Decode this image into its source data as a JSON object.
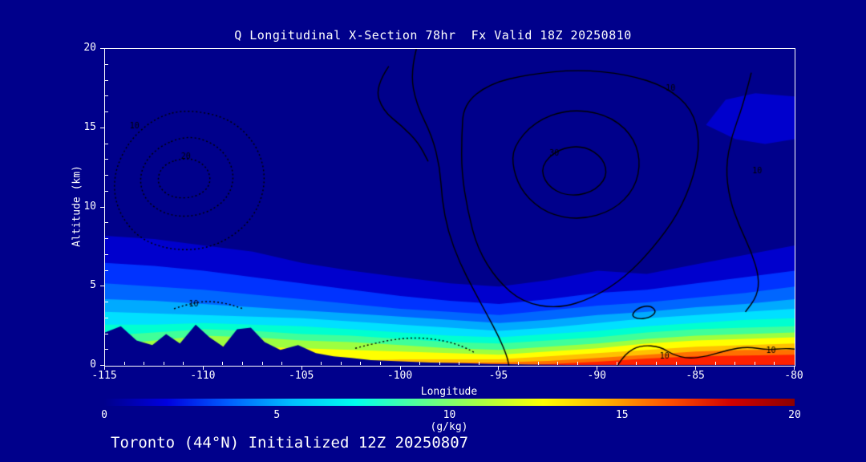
{
  "title": "Q Longitudinal X-Section 78hr  Fx Valid 18Z 20250810",
  "caption": "Toronto (44°N) Initialized 12Z 20250807",
  "axes": {
    "xlabel": "Longitude",
    "ylabel": "Altitude (km)",
    "x_ticks": [
      -115,
      -110,
      -105,
      -100,
      -95,
      -90,
      -85,
      -80
    ],
    "y_ticks": [
      0,
      5,
      10,
      15,
      20
    ],
    "x_minor_step": 1,
    "y_minor_step": 1
  },
  "colorbar": {
    "label": "(g/kg)",
    "ticks": [
      0,
      5,
      10,
      15,
      20
    ],
    "min": 0,
    "max": 20,
    "gradient": [
      "#00008b",
      "#0000e0",
      "#0060ff",
      "#00c0ff",
      "#00ffee",
      "#55ff99",
      "#aaff44",
      "#ffff00",
      "#ffb000",
      "#ff5000",
      "#d00000",
      "#8b0000"
    ]
  },
  "colors": {
    "background": "#00008b",
    "frame": "#ffffff",
    "text": "#ffffff",
    "contour_line": "#000000"
  },
  "chart_data": {
    "type": "heatmap",
    "title": "Q Longitudinal X-Section 78hr  Fx Valid 18Z 20250810",
    "xlabel": "Longitude",
    "ylabel": "Altitude (km)",
    "units": "g/kg",
    "x_range": [
      -115,
      -80
    ],
    "y_range": [
      0,
      20
    ],
    "grid_lons": [
      -115,
      -112.5,
      -110,
      -107.5,
      -105,
      -102.5,
      -100,
      -97.5,
      -95,
      -92.5,
      -90,
      -87.5,
      -85,
      -82.5,
      -80
    ],
    "shaded_bands": [
      {
        "level": 1,
        "color": "#0000cd",
        "tops": [
          8.2,
          8.0,
          7.6,
          7.2,
          6.5,
          6.0,
          5.6,
          5.2,
          5.0,
          5.4,
          6.0,
          5.8,
          6.4,
          7.0,
          7.6
        ]
      },
      {
        "level": 2,
        "color": "#0033ff",
        "tops": [
          6.5,
          6.3,
          6.0,
          5.6,
          5.2,
          4.8,
          4.4,
          4.1,
          3.9,
          4.2,
          4.6,
          4.8,
          5.2,
          5.6,
          6.0
        ]
      },
      {
        "level": 3,
        "color": "#0066ff",
        "tops": [
          5.2,
          5.0,
          4.8,
          4.5,
          4.2,
          3.9,
          3.6,
          3.4,
          3.2,
          3.5,
          3.8,
          4.0,
          4.3,
          4.6,
          5.0
        ]
      },
      {
        "level": 4,
        "color": "#00aaff",
        "tops": [
          4.2,
          4.1,
          3.9,
          3.7,
          3.5,
          3.3,
          3.1,
          2.9,
          2.7,
          2.9,
          3.2,
          3.4,
          3.7,
          3.9,
          4.2
        ]
      },
      {
        "level": 5,
        "color": "#00e0ff",
        "tops": [
          3.4,
          3.3,
          3.2,
          3.1,
          3.0,
          2.8,
          2.6,
          2.4,
          2.2,
          2.4,
          2.7,
          3.0,
          3.2,
          3.4,
          3.6
        ]
      },
      {
        "level": 6,
        "color": "#00ffd0",
        "tops": [
          2.6,
          2.6,
          2.7,
          2.6,
          2.5,
          2.3,
          2.1,
          1.9,
          1.8,
          2.0,
          2.2,
          2.5,
          2.7,
          2.9,
          3.0
        ]
      },
      {
        "level": 7,
        "color": "#40ff99",
        "tops": [
          1.9,
          2.1,
          2.3,
          2.2,
          2.0,
          1.9,
          1.7,
          1.5,
          1.4,
          1.6,
          1.8,
          2.1,
          2.3,
          2.4,
          2.5
        ]
      },
      {
        "level": 8,
        "color": "#9dff40",
        "tops": [
          1.3,
          1.6,
          1.9,
          1.8,
          1.6,
          1.5,
          1.3,
          1.1,
          1.0,
          1.2,
          1.4,
          1.7,
          1.9,
          2.0,
          2.1
        ]
      },
      {
        "level": 10,
        "color": "#ffff00",
        "tops": [
          0.8,
          1.0,
          1.3,
          1.2,
          1.1,
          1.0,
          0.9,
          0.8,
          0.7,
          0.9,
          1.1,
          1.4,
          1.6,
          1.7,
          1.8
        ]
      },
      {
        "level": 12,
        "color": "#ffc000",
        "tops": [
          0,
          0,
          0,
          0,
          0,
          0.3,
          0.4,
          0.4,
          0.4,
          0.6,
          0.8,
          1.0,
          1.2,
          1.3,
          1.4
        ]
      },
      {
        "level": 14,
        "color": "#ff7000",
        "tops": [
          0,
          0,
          0,
          0,
          0,
          0,
          0.1,
          0.2,
          0.2,
          0.3,
          0.5,
          0.7,
          0.9,
          1.0,
          1.0
        ]
      },
      {
        "level": 16,
        "color": "#ff2000",
        "tops": [
          0,
          0,
          0,
          0,
          0,
          0,
          0,
          0,
          0,
          0.1,
          0.25,
          0.45,
          0.6,
          0.65,
          0.7
        ]
      }
    ],
    "terrain": {
      "lons": [
        -115,
        -114.2,
        -113.4,
        -112.6,
        -111.9,
        -111.2,
        -110.4,
        -109.7,
        -109.0,
        -108.3,
        -107.6,
        -106.9,
        -106.1,
        -105.2,
        -104.3,
        -103.4,
        -102.5,
        -101.5,
        -100.5,
        -99.5,
        -98.5,
        -97.5,
        -96.5,
        -95.5,
        -94.5,
        -93.5,
        -92.5,
        -91.5,
        -90.5,
        -80
      ],
      "heights": [
        2.1,
        2.5,
        1.6,
        1.3,
        2.0,
        1.4,
        2.6,
        1.8,
        1.2,
        2.3,
        2.4,
        1.5,
        1.0,
        1.3,
        0.8,
        0.6,
        0.5,
        0.35,
        0.3,
        0.25,
        0.2,
        0.18,
        0.15,
        0.12,
        0.1,
        0.08,
        0.06,
        0.05,
        0.05,
        0.05
      ]
    },
    "upper_patch": {
      "color": "#0000cd",
      "pts": [
        [
          -84.5,
          15.2
        ],
        [
          -83.5,
          16.8
        ],
        [
          -82.0,
          17.2
        ],
        [
          -80,
          17.0
        ],
        [
          -80,
          14.3
        ],
        [
          -81.5,
          14.0
        ],
        [
          -83.0,
          14.3
        ]
      ]
    },
    "contours": [
      {
        "style": "solid",
        "closed": false,
        "pts": [
          [
            -99.2,
            20
          ],
          [
            -99.5,
            18.5
          ],
          [
            -99.2,
            16.5
          ],
          [
            -98.4,
            14.5
          ],
          [
            -98.0,
            12.5
          ],
          [
            -97.9,
            10.5
          ],
          [
            -97.6,
            8.5
          ],
          [
            -97.0,
            6.5
          ],
          [
            -96.3,
            4.8
          ],
          [
            -95.6,
            3.2
          ],
          [
            -95.0,
            1.8
          ],
          [
            -94.6,
            0.6
          ],
          [
            -94.5,
            0
          ]
        ]
      },
      {
        "style": "solid",
        "closed": false,
        "pts": [
          [
            -100.6,
            18.9
          ],
          [
            -101.3,
            17.6
          ],
          [
            -100.9,
            16.1
          ],
          [
            -99.9,
            15.1
          ],
          [
            -99.1,
            14.1
          ],
          [
            -98.6,
            12.9
          ]
        ]
      },
      {
        "style": "solid",
        "closed": true,
        "pts": [
          [
            -96.8,
            16.5
          ],
          [
            -95.5,
            17.8
          ],
          [
            -93.5,
            18.4
          ],
          [
            -91.0,
            18.7
          ],
          [
            -88.5,
            18.4
          ],
          [
            -86.5,
            17.6
          ],
          [
            -85.2,
            16.2
          ],
          [
            -84.8,
            14.2
          ],
          [
            -85.1,
            12.0
          ],
          [
            -85.9,
            9.6
          ],
          [
            -87.2,
            7.4
          ],
          [
            -88.6,
            5.6
          ],
          [
            -90.2,
            4.3
          ],
          [
            -92.0,
            3.6
          ],
          [
            -93.8,
            4.0
          ],
          [
            -95.1,
            5.4
          ],
          [
            -96.1,
            7.4
          ],
          [
            -96.6,
            9.8
          ],
          [
            -96.9,
            12.2
          ],
          [
            -96.9,
            14.5
          ]
        ]
      },
      {
        "style": "solid",
        "closed": true,
        "pts": [
          [
            -94.3,
            13.8
          ],
          [
            -93.2,
            15.4
          ],
          [
            -91.5,
            16.2
          ],
          [
            -89.6,
            15.9
          ],
          [
            -88.3,
            14.7
          ],
          [
            -87.8,
            13.0
          ],
          [
            -88.1,
            11.2
          ],
          [
            -89.2,
            9.8
          ],
          [
            -90.9,
            9.2
          ],
          [
            -92.6,
            9.6
          ],
          [
            -93.8,
            10.9
          ],
          [
            -94.3,
            12.4
          ]
        ]
      },
      {
        "style": "solid",
        "closed": true,
        "pts": [
          [
            -92.9,
            12.6
          ],
          [
            -92.0,
            13.7
          ],
          [
            -90.7,
            13.9
          ],
          [
            -89.7,
            13.1
          ],
          [
            -89.5,
            11.9
          ],
          [
            -90.3,
            10.9
          ],
          [
            -91.6,
            10.7
          ],
          [
            -92.6,
            11.4
          ]
        ]
      },
      {
        "style": "solid",
        "closed": false,
        "pts": [
          [
            -82.2,
            18.5
          ],
          [
            -82.6,
            16.5
          ],
          [
            -83.2,
            14.5
          ],
          [
            -83.5,
            12.5
          ],
          [
            -83.3,
            10.5
          ],
          [
            -82.8,
            8.8
          ],
          [
            -82.2,
            7.2
          ],
          [
            -81.8,
            5.6
          ],
          [
            -81.9,
            4.4
          ],
          [
            -82.5,
            3.4
          ]
        ]
      },
      {
        "style": "solid",
        "closed": false,
        "pts": [
          [
            -89.0,
            0
          ],
          [
            -88.6,
            0.8
          ],
          [
            -87.8,
            1.3
          ],
          [
            -86.8,
            1.2
          ],
          [
            -86.2,
            0.7
          ],
          [
            -85.4,
            0.45
          ],
          [
            -84.4,
            0.6
          ],
          [
            -83.4,
            1.0
          ],
          [
            -82.4,
            1.2
          ],
          [
            -81.4,
            1.0
          ],
          [
            -80.5,
            1.1
          ],
          [
            -80,
            1.05
          ]
        ]
      },
      {
        "style": "solid",
        "closed": true,
        "pts": [
          [
            -88.3,
            3.2
          ],
          [
            -87.9,
            3.7
          ],
          [
            -87.3,
            3.8
          ],
          [
            -87.0,
            3.4
          ],
          [
            -87.4,
            3.0
          ],
          [
            -88.0,
            2.95
          ]
        ]
      },
      {
        "style": "dotted",
        "closed": true,
        "pts": [
          [
            -110.8,
            16.2
          ],
          [
            -108.6,
            15.6
          ],
          [
            -107.2,
            13.8
          ],
          [
            -106.8,
            11.5
          ],
          [
            -107.5,
            9.2
          ],
          [
            -109.2,
            7.6
          ],
          [
            -111.2,
            7.2
          ],
          [
            -113.2,
            7.9
          ],
          [
            -114.4,
            9.8
          ],
          [
            -114.6,
            12.0
          ],
          [
            -113.8,
            14.2
          ],
          [
            -112.4,
            15.7
          ]
        ]
      },
      {
        "style": "dotted",
        "closed": true,
        "pts": [
          [
            -110.8,
            14.6
          ],
          [
            -109.2,
            13.9
          ],
          [
            -108.4,
            12.3
          ],
          [
            -108.7,
            10.6
          ],
          [
            -110.0,
            9.5
          ],
          [
            -111.7,
            9.4
          ],
          [
            -113.0,
            10.4
          ],
          [
            -113.3,
            12.1
          ],
          [
            -112.5,
            13.7
          ]
        ]
      },
      {
        "style": "dotted",
        "closed": true,
        "pts": [
          [
            -110.8,
            13.2
          ],
          [
            -109.8,
            12.6
          ],
          [
            -109.6,
            11.4
          ],
          [
            -110.4,
            10.6
          ],
          [
            -111.7,
            10.6
          ],
          [
            -112.4,
            11.5
          ],
          [
            -112.1,
            12.7
          ]
        ]
      },
      {
        "style": "dotted",
        "closed": false,
        "pts": [
          [
            -102.3,
            1.1
          ],
          [
            -100.8,
            1.6
          ],
          [
            -99.2,
            1.8
          ],
          [
            -97.8,
            1.6
          ],
          [
            -96.8,
            1.2
          ],
          [
            -96.2,
            0.8
          ]
        ]
      },
      {
        "style": "dotted",
        "closed": false,
        "pts": [
          [
            -111.5,
            3.6
          ],
          [
            -110.3,
            4.1
          ],
          [
            -109.0,
            4.0
          ],
          [
            -108.0,
            3.6
          ]
        ]
      }
    ],
    "contour_labels": [
      {
        "text": "10",
        "lon": -113.5,
        "alt": 15.1
      },
      {
        "text": "20",
        "lon": -110.9,
        "alt": 13.2
      },
      {
        "text": "10",
        "lon": -110.5,
        "alt": 3.9
      },
      {
        "text": "10",
        "lon": -86.3,
        "alt": 17.5
      },
      {
        "text": "30",
        "lon": -92.2,
        "alt": 13.4
      },
      {
        "text": "10",
        "lon": -81.9,
        "alt": 12.3
      },
      {
        "text": "10",
        "lon": -86.6,
        "alt": 0.6
      },
      {
        "text": "10",
        "lon": -81.2,
        "alt": 0.95
      }
    ]
  }
}
